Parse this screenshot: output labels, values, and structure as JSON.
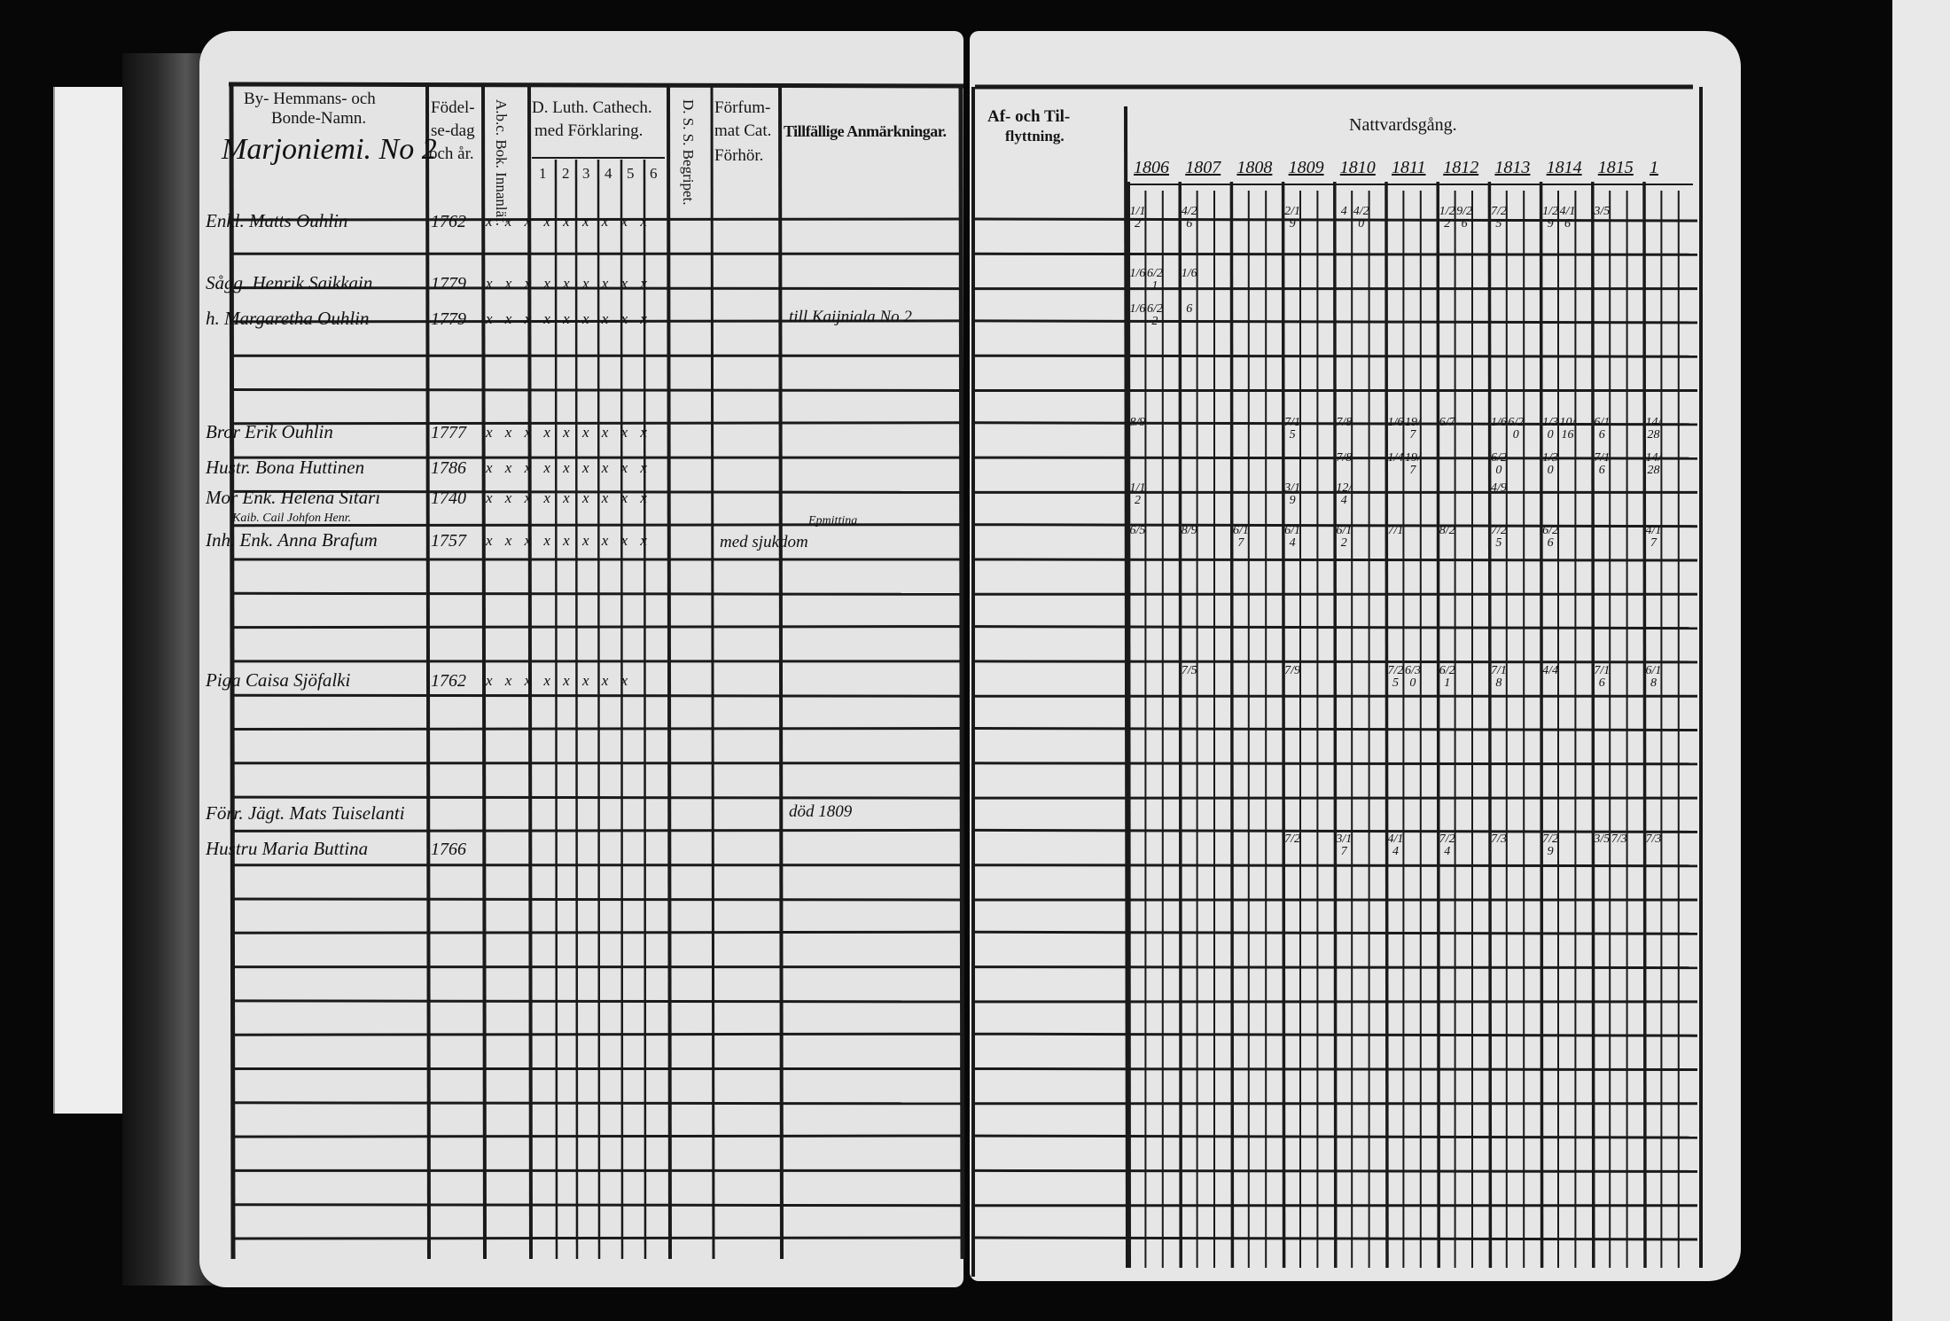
{
  "document": {
    "left_page": {
      "headers": {
        "name_col_line1": "By- Hemmans- och",
        "name_col_line2": "Bonde-Namn.",
        "birth_line1": "Födel-",
        "birth_line2": "se-dag",
        "birth_line3": "och år.",
        "abc": "A.b.c. Bok. Innanläf.",
        "catechism_line1": "D. Luth. Cathech.",
        "catechism_line2": "med Förklaring.",
        "catechism_subcols": [
          "1",
          "2",
          "3",
          "4",
          "5",
          "6"
        ],
        "begripet": "D. S. S. Begripet.",
        "neglected_line1": "Förfum-",
        "neglected_line2": "mat Cat.",
        "neglected_line3": "Förhör.",
        "remarks": "Tillfällige Anmärkningar."
      },
      "farm_name": "Marjoniemi. No 2",
      "entries": [
        {
          "name": "Enkl. Matts Ouhlin",
          "year": "1762",
          "marks": "x x x x x x x x x"
        },
        {
          "name": "Sågg. Henrik Saikkain",
          "year": "1779",
          "marks": "x x x x x x x x x"
        },
        {
          "name": "h. Margaretha Ouhlin",
          "year": "1779",
          "marks": "x x x x x x x x x",
          "remark": "till Kaijniala No 2."
        },
        {
          "name": "Bror Erik Ouhlin",
          "year": "1777",
          "marks": "x x x x x x x x x"
        },
        {
          "name": "Hustr. Bona Huttinen",
          "year": "1786",
          "marks": "x x x x x x x x x"
        },
        {
          "name": "Mor Enk. Helena Sitari",
          "year": "1740",
          "marks": "x x x x x x x x x"
        },
        {
          "name": "Kaib. Cail Johfon Henr.",
          "year": "",
          "marks": ""
        },
        {
          "name": "Inh. Enk. Anna Brafum",
          "year": "1757",
          "marks": "x x x x x x x x x",
          "remark": "med sjukdom",
          "remark2": "Epmittina"
        },
        {
          "name": "Piga Caisa Sjöfalki",
          "year": "1762",
          "marks": "x x x x x x x x"
        },
        {
          "name": "Förr. Jägt. Mats Tuiselanti",
          "year": "",
          "marks": "",
          "remark": "död 1809"
        },
        {
          "name": "Hustru Maria Buttina",
          "year": "1766",
          "marks": ""
        }
      ]
    },
    "right_page": {
      "moving_header_line1": "Af- och Til-",
      "moving_header_line2": "flyttning.",
      "communion_header": "Nattvardsgång.",
      "years": [
        "1806",
        "1807",
        "1808",
        "1809",
        "1810",
        "1811",
        "1812",
        "1813",
        "1814",
        "1815",
        "1"
      ],
      "rows": [
        {
          "marks": [
            {
              "year": "1806",
              "text": "1/12"
            },
            {
              "year": "1807",
              "text": "4/26"
            },
            {
              "year": "1809",
              "text": "2/19"
            },
            {
              "year": "1810",
              "text": "4"
            },
            {
              "year": "1810",
              "text": "4/20"
            },
            {
              "year": "1812",
              "text": "1/22"
            },
            {
              "year": "1812",
              "text": "9/26"
            },
            {
              "year": "1813",
              "text": "7/25"
            },
            {
              "year": "1814",
              "text": "1/29"
            },
            {
              "year": "1814",
              "text": "4/16"
            },
            {
              "year": "1815",
              "text": "3/5"
            }
          ]
        },
        {
          "marks": [
            {
              "year": "1806",
              "text": "1/6"
            },
            {
              "year": "1806",
              "text": "6/21"
            },
            {
              "year": "1807",
              "text": "1/6"
            }
          ]
        },
        {
          "marks": [
            {
              "year": "1806",
              "text": "1/6"
            },
            {
              "year": "1806",
              "text": "6/22"
            },
            {
              "year": "1807",
              "text": "6"
            }
          ]
        },
        {
          "marks": [
            {
              "year": "1806",
              "text": "8/9"
            },
            {
              "year": "1809",
              "text": "7/15"
            },
            {
              "year": "1810",
              "text": "7/8"
            },
            {
              "year": "1811",
              "text": "1/6"
            },
            {
              "year": "1811",
              "text": "19/7"
            },
            {
              "year": "1812",
              "text": "6/7"
            },
            {
              "year": "1813",
              "text": "1/6"
            },
            {
              "year": "1813",
              "text": "6/20"
            },
            {
              "year": "1814",
              "text": "1/30"
            },
            {
              "year": "1814",
              "text": "10/16"
            },
            {
              "year": "1815",
              "text": "6/16"
            },
            {
              "year": "1",
              "text": "14/28"
            }
          ]
        },
        {
          "marks": [
            {
              "year": "1810",
              "text": "7/8"
            },
            {
              "year": "1811",
              "text": "1/4"
            },
            {
              "year": "1811",
              "text": "19/7"
            },
            {
              "year": "1813",
              "text": "6/20"
            },
            {
              "year": "1814",
              "text": "1/30"
            },
            {
              "year": "1815",
              "text": "7/16"
            },
            {
              "year": "1",
              "text": "14/28"
            }
          ]
        },
        {
          "marks": [
            {
              "year": "1806",
              "text": "1/12"
            },
            {
              "year": "1809",
              "text": "3/19"
            },
            {
              "year": "1810",
              "text": "12/4"
            },
            {
              "year": "1813",
              "text": "4/9"
            }
          ]
        },
        {
          "marks": []
        },
        {
          "marks": [
            {
              "year": "1806",
              "text": "6/5"
            },
            {
              "year": "1807",
              "text": "8/9"
            },
            {
              "year": "1808",
              "text": "6/17"
            },
            {
              "year": "1809",
              "text": "6/14"
            },
            {
              "year": "1810",
              "text": "6/12"
            },
            {
              "year": "1811",
              "text": "7/1"
            },
            {
              "year": "1812",
              "text": "8/2"
            },
            {
              "year": "1813",
              "text": "7/25"
            },
            {
              "year": "1814",
              "text": "6/26"
            },
            {
              "year": "1",
              "text": "4/17"
            }
          ]
        },
        {
          "marks": [
            {
              "year": "1807",
              "text": "7/5"
            },
            {
              "year": "1809",
              "text": "7/9"
            },
            {
              "year": "1811",
              "text": "7/25"
            },
            {
              "year": "1811",
              "text": "6/30"
            },
            {
              "year": "1812",
              "text": "6/21"
            },
            {
              "year": "1813",
              "text": "7/18"
            },
            {
              "year": "1814",
              "text": "4/4"
            },
            {
              "year": "1815",
              "text": "7/16"
            },
            {
              "year": "1",
              "text": "6/18"
            }
          ]
        },
        {
          "marks": []
        },
        {
          "marks": [
            {
              "year": "1809",
              "text": "7/2"
            },
            {
              "year": "1810",
              "text": "3/17"
            },
            {
              "year": "1811",
              "text": "4/14"
            },
            {
              "year": "1812",
              "text": "7/24"
            },
            {
              "year": "1813",
              "text": "7/3"
            },
            {
              "year": "1814",
              "text": "7/29"
            },
            {
              "year": "1815",
              "text": "3/5"
            },
            {
              "year": "1815",
              "text": "7/3"
            },
            {
              "year": "1",
              "text": "7/3"
            }
          ]
        }
      ]
    }
  },
  "colors": {
    "paper": "#e4e4e4",
    "ink": "#151515",
    "background": "#070707"
  }
}
